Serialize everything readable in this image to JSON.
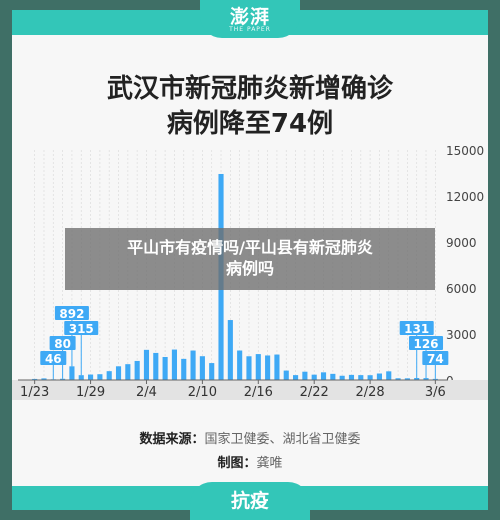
{
  "header": {
    "logo": "澎湃",
    "logo_sub": "THE PAPER"
  },
  "title_lines": [
    "武汉市新冠肺炎新增确诊",
    "病例降至74例"
  ],
  "source": {
    "label": "数据来源：",
    "value": "国家卫健委、湖北省卫健委"
  },
  "credit": {
    "label": "制图：",
    "value": "龚唯"
  },
  "overlay": {
    "lines": [
      "平山市有疫情吗/平山县有新冠肺炎",
      "病例吗"
    ]
  },
  "footer": {
    "logo": "抗疫"
  },
  "colors": {
    "accent": "#33c6b8",
    "bar": "#3ea9f5",
    "highlight": "#3ea9f5"
  },
  "chart_data": {
    "type": "bar",
    "categories": [
      "1/23",
      "1/24",
      "1/25",
      "1/26",
      "1/27",
      "1/28",
      "1/29",
      "1/30",
      "1/31",
      "2/1",
      "2/2",
      "2/3",
      "2/4",
      "2/5",
      "2/6",
      "2/7",
      "2/8",
      "2/9",
      "2/10",
      "2/11",
      "2/12",
      "2/13",
      "2/14",
      "2/15",
      "2/16",
      "2/17",
      "2/18",
      "2/19",
      "2/20",
      "2/21",
      "2/22",
      "2/23",
      "2/24",
      "2/25",
      "2/26",
      "2/27",
      "2/28",
      "2/29",
      "3/1",
      "3/2",
      "3/3",
      "3/4",
      "3/5",
      "3/6"
    ],
    "values": [
      70,
      105,
      46,
      80,
      892,
      315,
      356,
      378,
      576,
      894,
      1033,
      1242,
      1967,
      1766,
      1501,
      1985,
      1379,
      1921,
      1552,
      1104,
      13436,
      3910,
      1923,
      1548,
      1690,
      1600,
      1660,
      615,
      319,
      541,
      348,
      500,
      401,
      277,
      334,
      318,
      313,
      423,
      565,
      114,
      111,
      131,
      126,
      74
    ],
    "x_tick_labels": [
      "1/23",
      "1/29",
      "2/4",
      "2/10",
      "2/16",
      "2/22",
      "2/28",
      "3/6"
    ],
    "y_tick_labels": [
      "0",
      "3000",
      "6000",
      "9000",
      "12000",
      "15000"
    ],
    "ylim": [
      0,
      15000
    ],
    "annotations": [
      {
        "category": "1/25",
        "label": "46"
      },
      {
        "category": "1/26",
        "label": "80"
      },
      {
        "category": "1/27",
        "label": "892"
      },
      {
        "category": "1/28",
        "label": "315"
      },
      {
        "category": "3/4",
        "label": "131"
      },
      {
        "category": "3/5",
        "label": "126"
      },
      {
        "category": "3/6",
        "label": "74"
      }
    ]
  }
}
